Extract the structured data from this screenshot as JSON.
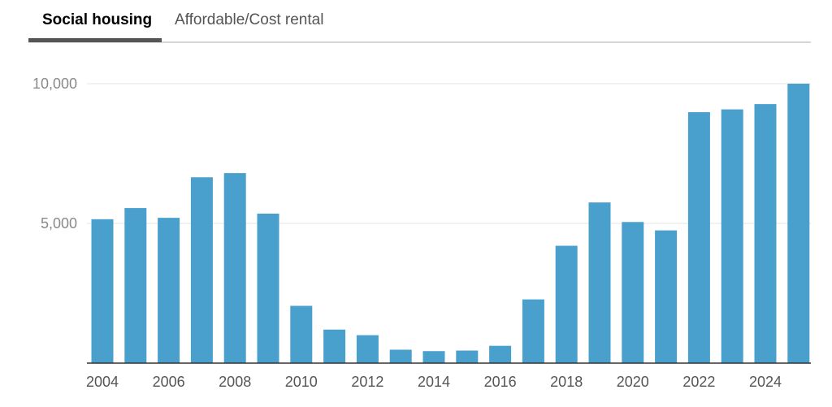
{
  "tabs": [
    {
      "label": "Social housing",
      "active": true
    },
    {
      "label": "Affordable/Cost rental",
      "active": false
    }
  ],
  "colors": {
    "bar": "#4aa0cc",
    "grid": "#e4e4e4",
    "axis": "#333333"
  },
  "chart_data": {
    "type": "bar",
    "x": [
      2004,
      2005,
      2006,
      2007,
      2008,
      2009,
      2010,
      2011,
      2012,
      2013,
      2014,
      2015,
      2016,
      2017,
      2018,
      2019,
      2020,
      2021,
      2022,
      2023,
      2024,
      2025
    ],
    "values": [
      5150,
      5550,
      5200,
      6650,
      6800,
      5350,
      2050,
      1200,
      1000,
      480,
      430,
      450,
      620,
      2280,
      4200,
      5750,
      5050,
      4750,
      8980,
      9080,
      9270,
      10000
    ],
    "x_tick_labels": [
      "2004",
      "2006",
      "2008",
      "2010",
      "2012",
      "2014",
      "2016",
      "2018",
      "2020",
      "2022",
      "2024"
    ],
    "y_tick_labels": [
      "5,000",
      "10,000"
    ],
    "y_ticks": [
      5000,
      10000
    ],
    "ylim": [
      0,
      10000
    ],
    "grid": true,
    "title": "",
    "xlabel": "",
    "ylabel": ""
  }
}
